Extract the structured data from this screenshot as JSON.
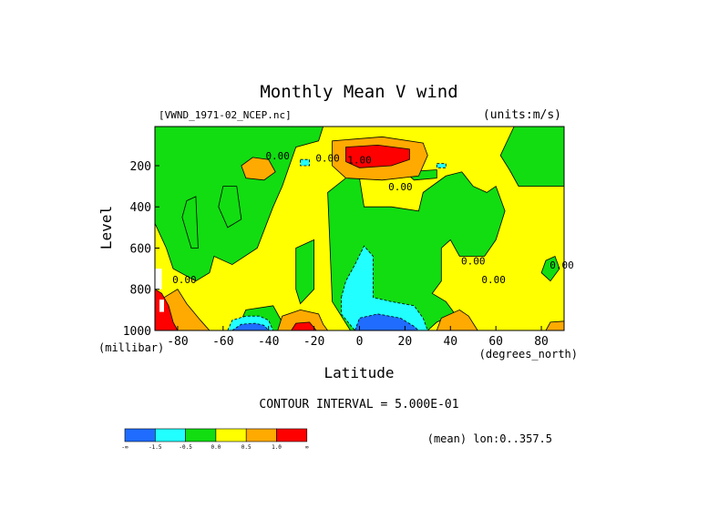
{
  "chart_data": {
    "type": "heatmap",
    "title": "Monthly Mean V wind",
    "dataset_label": "[VWND_1971-02_NCEP.nc]",
    "units_label": "(units:m/s)",
    "xlabel": "Latitude",
    "x_units": "(degrees_north)",
    "ylabel": "Level",
    "y_units": "(millibar)",
    "xlim": [
      -90,
      90
    ],
    "ylim": [
      1000,
      10
    ],
    "x_ticks": [
      -80,
      -60,
      -40,
      -20,
      0,
      20,
      40,
      60,
      80
    ],
    "x_tick_labels": [
      "-80",
      "-60",
      "-40",
      "-20",
      "0",
      "20",
      "40",
      "60",
      "80"
    ],
    "y_ticks": [
      200,
      400,
      600,
      800,
      1000
    ],
    "y_tick_labels": [
      "200",
      "400",
      "600",
      "800",
      "1000"
    ],
    "contour_interval_label": "CONTOUR INTERVAL = 5.000E-01",
    "mean_label": "(mean) lon:0..357.5",
    "contour_labels": [
      {
        "text": "0.00",
        "lat": -36,
        "level": 170
      },
      {
        "text": "0.00",
        "lat": -14,
        "level": 180
      },
      {
        "text": "1.00",
        "lat": 0,
        "level": 190
      },
      {
        "text": "0.00",
        "lat": 18,
        "level": 320
      },
      {
        "text": "0.00",
        "lat": 50,
        "level": 680
      },
      {
        "text": "0.00",
        "lat": -77,
        "level": 770
      },
      {
        "text": "0.00",
        "lat": 59,
        "level": 770
      },
      {
        "text": "0.00",
        "lat": 89,
        "level": 700
      }
    ],
    "colorbar": {
      "colors": [
        "#1f6cff",
        "#21ffff",
        "#11dd11",
        "#ffff00",
        "#ffaa00",
        "#ff0000"
      ],
      "labels": [
        "-∞",
        "-1.5",
        "-0.5",
        "0.0",
        "0.5",
        "1.0",
        "∞"
      ]
    },
    "regions": [
      {
        "fill": "#ffff00",
        "points": [
          [
            -90,
            10
          ],
          [
            90,
            10
          ],
          [
            90,
            1000
          ],
          [
            -90,
            1000
          ]
        ]
      },
      {
        "fill": "#11dd11",
        "points": [
          [
            -80,
            10
          ],
          [
            -16,
            10
          ],
          [
            -18,
            80
          ],
          [
            -28,
            110
          ],
          [
            -34,
            300
          ],
          [
            -38,
            400
          ],
          [
            -45,
            600
          ],
          [
            -56,
            680
          ],
          [
            -64,
            640
          ],
          [
            -66,
            720
          ],
          [
            -72,
            760
          ],
          [
            -82,
            700
          ],
          [
            -85,
            600
          ],
          [
            -90,
            480
          ],
          [
            -90,
            10
          ]
        ]
      },
      {
        "fill": "#11dd11",
        "points": [
          [
            -76,
            370
          ],
          [
            -72,
            350
          ],
          [
            -71,
            600
          ],
          [
            -74,
            600
          ],
          [
            -78,
            450
          ]
        ]
      },
      {
        "fill": "#11dd11",
        "points": [
          [
            -60,
            300
          ],
          [
            -54,
            300
          ],
          [
            -52,
            460
          ],
          [
            -58,
            500
          ],
          [
            -62,
            400
          ]
        ]
      },
      {
        "fill": "#11dd11",
        "points": [
          [
            -28,
            600
          ],
          [
            -20,
            560
          ],
          [
            -20,
            800
          ],
          [
            -26,
            870
          ],
          [
            -28,
            800
          ]
        ]
      },
      {
        "fill": "#11dd11",
        "points": [
          [
            -50,
            900
          ],
          [
            -38,
            880
          ],
          [
            -32,
            1000
          ],
          [
            -54,
            1000
          ]
        ]
      },
      {
        "fill": "#11dd11",
        "points": [
          [
            -4,
            1000
          ],
          [
            -12,
            860
          ],
          [
            -14,
            330
          ],
          [
            -6,
            260
          ],
          [
            0,
            260
          ],
          [
            2,
            400
          ],
          [
            14,
            400
          ],
          [
            26,
            420
          ],
          [
            28,
            330
          ],
          [
            38,
            250
          ],
          [
            45,
            230
          ],
          [
            50,
            300
          ],
          [
            56,
            330
          ],
          [
            60,
            300
          ],
          [
            64,
            420
          ],
          [
            60,
            560
          ],
          [
            55,
            640
          ],
          [
            44,
            640
          ],
          [
            40,
            560
          ],
          [
            36,
            600
          ],
          [
            36,
            760
          ],
          [
            32,
            820
          ],
          [
            38,
            860
          ],
          [
            42,
            920
          ],
          [
            34,
            960
          ],
          [
            30,
            1000
          ]
        ]
      },
      {
        "fill": "#11dd11",
        "points": [
          [
            20,
            230
          ],
          [
            34,
            220
          ],
          [
            34,
            260
          ],
          [
            24,
            270
          ]
        ]
      },
      {
        "fill": "#11dd11",
        "points": [
          [
            68,
            10
          ],
          [
            90,
            10
          ],
          [
            90,
            300
          ],
          [
            70,
            300
          ],
          [
            66,
            220
          ],
          [
            62,
            150
          ]
        ]
      },
      {
        "fill": "#11dd11",
        "points": [
          [
            82,
            660
          ],
          [
            86,
            640
          ],
          [
            88,
            700
          ],
          [
            84,
            760
          ],
          [
            80,
            720
          ]
        ]
      },
      {
        "fill": "#ffaa00",
        "points": [
          [
            -12,
            80
          ],
          [
            10,
            60
          ],
          [
            28,
            90
          ],
          [
            30,
            150
          ],
          [
            26,
            250
          ],
          [
            10,
            270
          ],
          [
            -6,
            260
          ],
          [
            -12,
            200
          ]
        ]
      },
      {
        "fill": "#ff0000",
        "points": [
          [
            -6,
            110
          ],
          [
            8,
            100
          ],
          [
            22,
            120
          ],
          [
            22,
            170
          ],
          [
            14,
            200
          ],
          [
            0,
            210
          ],
          [
            -6,
            180
          ]
        ]
      },
      {
        "fill": "#ffaa00",
        "points": [
          [
            -47,
            160
          ],
          [
            -40,
            170
          ],
          [
            -37,
            230
          ],
          [
            -42,
            270
          ],
          [
            -50,
            260
          ],
          [
            -52,
            200
          ]
        ]
      },
      {
        "fill": "#ffaa00",
        "points": [
          [
            -86,
            840
          ],
          [
            -80,
            800
          ],
          [
            -76,
            870
          ],
          [
            -70,
            950
          ],
          [
            -66,
            1000
          ],
          [
            -90,
            1000
          ],
          [
            -90,
            880
          ]
        ]
      },
      {
        "fill": "#ff0000",
        "points": [
          [
            -90,
            800
          ],
          [
            -87,
            820
          ],
          [
            -84,
            880
          ],
          [
            -82,
            960
          ],
          [
            -80,
            1000
          ],
          [
            -90,
            1000
          ]
        ]
      },
      {
        "fill": "#ffaa00",
        "points": [
          [
            -36,
            1000
          ],
          [
            -34,
            930
          ],
          [
            -26,
            900
          ],
          [
            -18,
            920
          ],
          [
            -16,
            970
          ],
          [
            -14,
            1000
          ]
        ]
      },
      {
        "fill": "#ff0000",
        "points": [
          [
            -30,
            1000
          ],
          [
            -28,
            965
          ],
          [
            -22,
            960
          ],
          [
            -19,
            1000
          ]
        ]
      },
      {
        "fill": "#ffaa00",
        "points": [
          [
            34,
            1000
          ],
          [
            36,
            940
          ],
          [
            44,
            900
          ],
          [
            48,
            930
          ],
          [
            52,
            1000
          ]
        ]
      },
      {
        "fill": "#ffaa00",
        "points": [
          [
            82,
            1000
          ],
          [
            84,
            960
          ],
          [
            90,
            955
          ],
          [
            90,
            1000
          ]
        ]
      },
      {
        "fill": "#21ffff",
        "points": [
          [
            -58,
            1000
          ],
          [
            -56,
            950
          ],
          [
            -50,
            930
          ],
          [
            -44,
            930
          ],
          [
            -40,
            950
          ],
          [
            -38,
            1000
          ]
        ]
      },
      {
        "fill": "#1f6cff",
        "points": [
          [
            -56,
            1000
          ],
          [
            -52,
            970
          ],
          [
            -46,
            965
          ],
          [
            -42,
            975
          ],
          [
            -40,
            1000
          ]
        ]
      },
      {
        "fill": "#21ffff",
        "points": [
          [
            -8,
            840
          ],
          [
            -6,
            760
          ],
          [
            -2,
            680
          ],
          [
            2,
            590
          ],
          [
            6,
            640
          ],
          [
            6,
            840
          ],
          [
            14,
            860
          ],
          [
            24,
            880
          ],
          [
            28,
            940
          ],
          [
            30,
            1000
          ],
          [
            -2,
            1000
          ],
          [
            -8,
            920
          ]
        ]
      },
      {
        "fill": "#1f6cff",
        "points": [
          [
            -2,
            1000
          ],
          [
            0,
            940
          ],
          [
            8,
            920
          ],
          [
            18,
            940
          ],
          [
            24,
            980
          ],
          [
            26,
            1000
          ]
        ]
      },
      {
        "fill": "#21ffff",
        "points": [
          [
            -26,
            170
          ],
          [
            -22,
            170
          ],
          [
            -22,
            200
          ],
          [
            -26,
            200
          ]
        ]
      },
      {
        "fill": "#21ffff",
        "points": [
          [
            34,
            190
          ],
          [
            38,
            190
          ],
          [
            38,
            210
          ],
          [
            34,
            210
          ]
        ]
      },
      {
        "fill": "#ffffff",
        "points": [
          [
            -90,
            700
          ],
          [
            -87,
            700
          ],
          [
            -87,
            800
          ],
          [
            -90,
            800
          ]
        ]
      },
      {
        "fill": "#ffffff",
        "points": [
          [
            -88,
            850
          ],
          [
            -86,
            850
          ],
          [
            -86,
            910
          ],
          [
            -88,
            910
          ]
        ]
      }
    ]
  }
}
